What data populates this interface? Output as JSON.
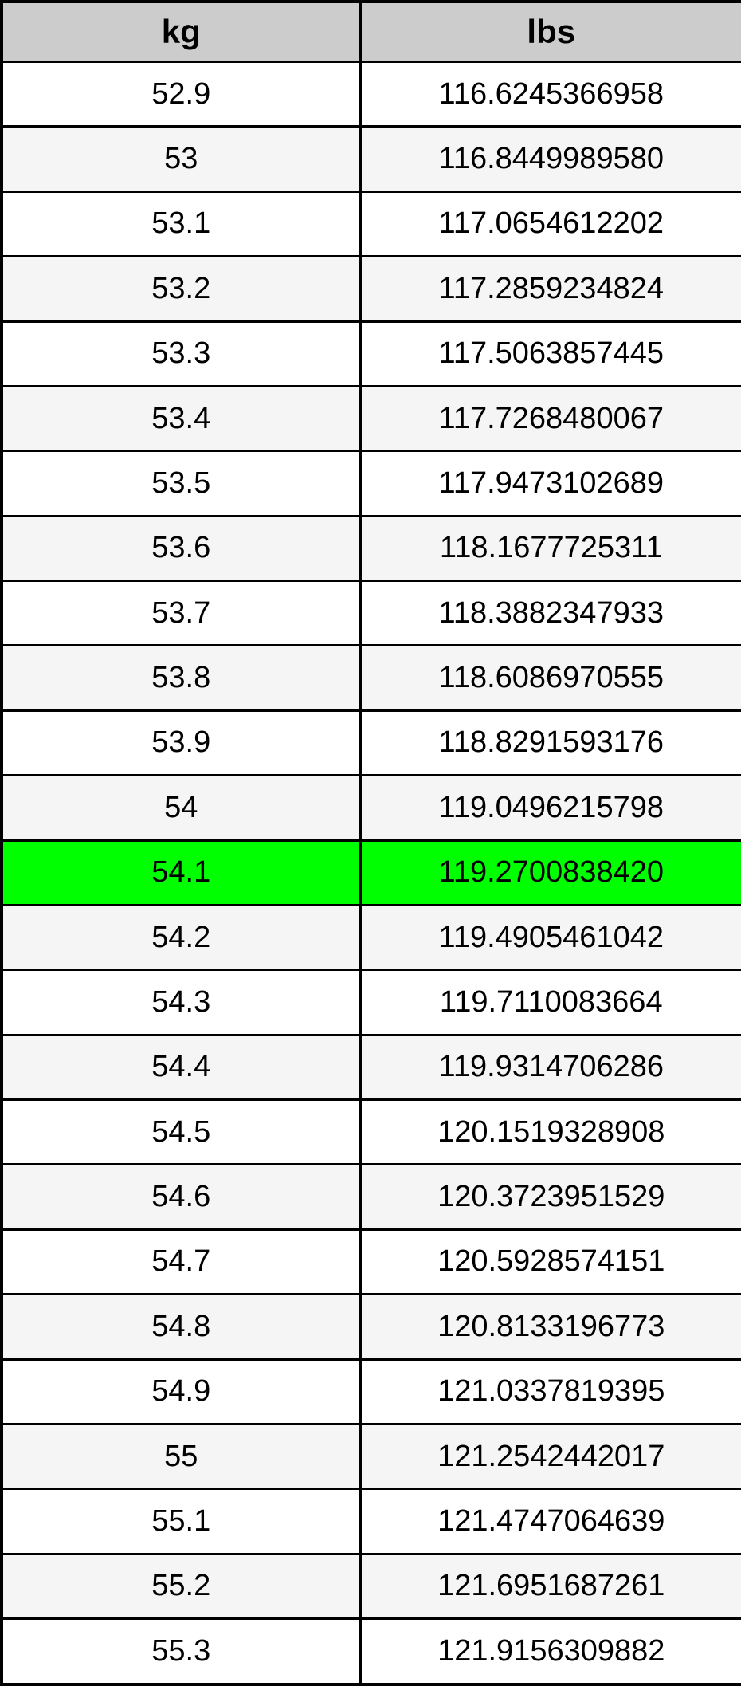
{
  "header": {
    "kg_label": "kg",
    "lbs_label": "lbs"
  },
  "colors": {
    "header_bg": "#cccccc",
    "alt_row_bg": "#f5f5f5",
    "row_bg": "#ffffff",
    "highlight_bg": "#00ff00",
    "border": "#000000",
    "text": "#000000"
  },
  "table": {
    "highlighted_row_index": 12,
    "highlighted_kg": "54.1",
    "rows": [
      {
        "kg": "52.9",
        "lbs": "116.6245366958"
      },
      {
        "kg": "53",
        "lbs": "116.8449989580"
      },
      {
        "kg": "53.1",
        "lbs": "117.0654612202"
      },
      {
        "kg": "53.2",
        "lbs": "117.2859234824"
      },
      {
        "kg": "53.3",
        "lbs": "117.5063857445"
      },
      {
        "kg": "53.4",
        "lbs": "117.7268480067"
      },
      {
        "kg": "53.5",
        "lbs": "117.9473102689"
      },
      {
        "kg": "53.6",
        "lbs": "118.1677725311"
      },
      {
        "kg": "53.7",
        "lbs": "118.3882347933"
      },
      {
        "kg": "53.8",
        "lbs": "118.6086970555"
      },
      {
        "kg": "53.9",
        "lbs": "118.8291593176"
      },
      {
        "kg": "54",
        "lbs": "119.0496215798"
      },
      {
        "kg": "54.1",
        "lbs": "119.2700838420"
      },
      {
        "kg": "54.2",
        "lbs": "119.4905461042"
      },
      {
        "kg": "54.3",
        "lbs": "119.7110083664"
      },
      {
        "kg": "54.4",
        "lbs": "119.9314706286"
      },
      {
        "kg": "54.5",
        "lbs": "120.1519328908"
      },
      {
        "kg": "54.6",
        "lbs": "120.3723951529"
      },
      {
        "kg": "54.7",
        "lbs": "120.5928574151"
      },
      {
        "kg": "54.8",
        "lbs": "120.8133196773"
      },
      {
        "kg": "54.9",
        "lbs": "121.0337819395"
      },
      {
        "kg": "55",
        "lbs": "121.2542442017"
      },
      {
        "kg": "55.1",
        "lbs": "121.4747064639"
      },
      {
        "kg": "55.2",
        "lbs": "121.6951687261"
      },
      {
        "kg": "55.3",
        "lbs": "121.9156309882"
      }
    ]
  }
}
